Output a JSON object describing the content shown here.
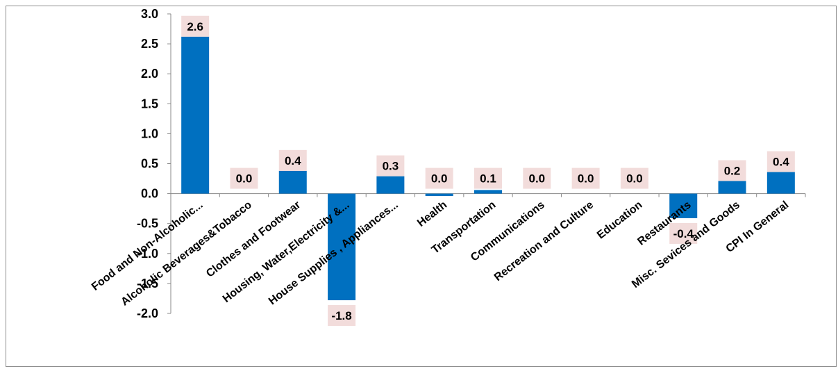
{
  "chart_data": {
    "type": "bar",
    "title": "",
    "xlabel": "",
    "ylabel": "",
    "ylim": [
      -2.0,
      3.0
    ],
    "yticks": [
      3.0,
      2.5,
      2.0,
      1.5,
      1.0,
      0.5,
      0.0,
      -0.5,
      -1.0,
      -1.5,
      -2.0
    ],
    "ytick_labels": [
      "3.0",
      "2.5",
      "2.0",
      "1.5",
      "1.0",
      "0.5",
      "0.0",
      "-0.5",
      "-1.0",
      "-1.5",
      "-2.0"
    ],
    "grid": false,
    "legend": "none",
    "categories": [
      "Food and Non-Alcoholic...",
      "Alcoholic Beverages&Tobacco",
      "Clothes and Footwear",
      "Housing, Water,Electricity &...",
      "House Supplies , Appliances...",
      "Health",
      "Transportation",
      "Communications",
      "Recreation and Culture",
      "Education",
      "Restaurants",
      "Misc. Sevices and Goods",
      "CPI In General"
    ],
    "values": [
      2.62,
      0.0,
      0.38,
      -1.78,
      0.29,
      -0.04,
      0.06,
      0.0,
      0.0,
      0.0,
      -0.41,
      0.21,
      0.36
    ],
    "data_labels": [
      "2.6",
      "0.0",
      "0.4",
      "-1.8",
      "0.3",
      "0.0",
      "0.1",
      "0.0",
      "0.0",
      "0.0",
      "-0.4",
      "0.2",
      "0.4"
    ],
    "colors": {
      "bar": "#0070c0",
      "label_bg": "#f2dcdb",
      "axis": "#888888"
    }
  }
}
